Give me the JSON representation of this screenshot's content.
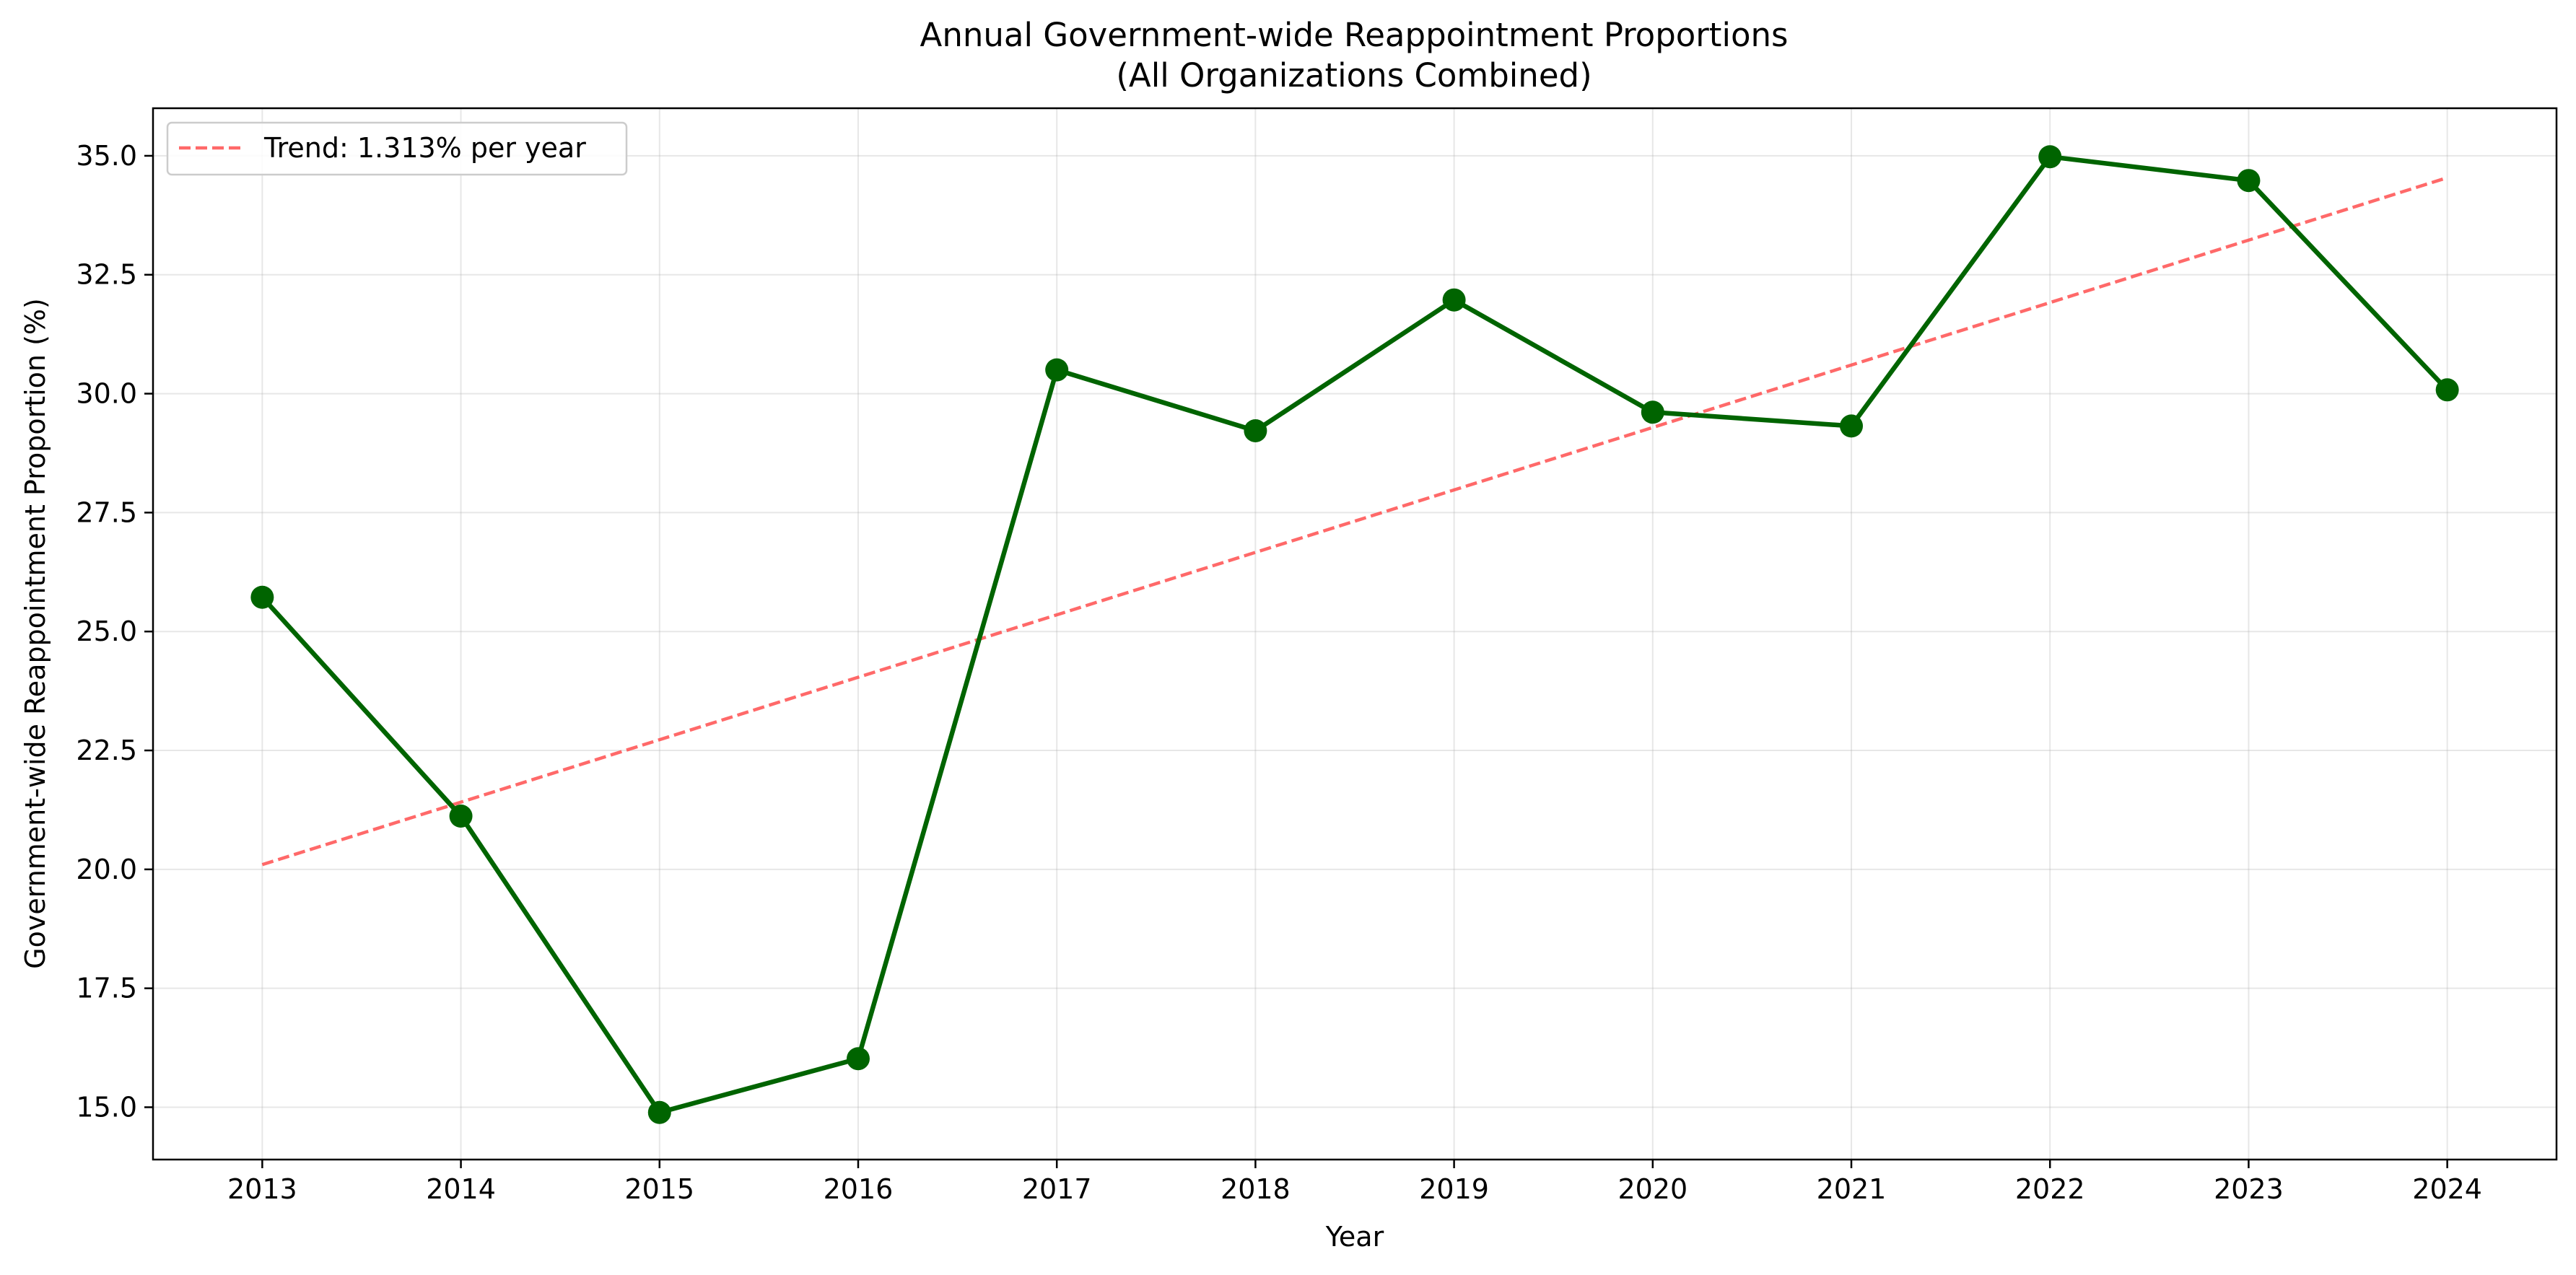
{
  "chart_data": {
    "type": "line",
    "title": "Annual Government-wide Reappointment Proportions",
    "subtitle": "(All Organizations Combined)",
    "xlabel": "Year",
    "ylabel": "Government-wide Reappointment Proportion (%)",
    "x": [
      2013,
      2014,
      2015,
      2016,
      2017,
      2018,
      2019,
      2020,
      2021,
      2022,
      2023,
      2024
    ],
    "x_ticks": [
      "2013",
      "2014",
      "2015",
      "2016",
      "2017",
      "2018",
      "2019",
      "2020",
      "2021",
      "2022",
      "2023",
      "2024"
    ],
    "xlim": [
      2012.45,
      2024.55
    ],
    "ylim": [
      13.9,
      36.0
    ],
    "y_ticks": [
      "15.0",
      "17.5",
      "20.0",
      "22.5",
      "25.0",
      "27.5",
      "30.0",
      "32.5",
      "35.0"
    ],
    "grid": true,
    "legend_position": "upper-left",
    "series": [
      {
        "kind": "data",
        "values": [
          25.72,
          21.12,
          14.89,
          16.02,
          30.5,
          29.22,
          31.97,
          29.61,
          29.32,
          34.98,
          34.48,
          30.08
        ],
        "color": "#006400",
        "marker": "circle"
      },
      {
        "kind": "trend",
        "name": "Trend: 1.313% per year",
        "y_start": 20.1,
        "y_end": 34.54,
        "color": "#ff4444",
        "dashed": true
      }
    ]
  }
}
